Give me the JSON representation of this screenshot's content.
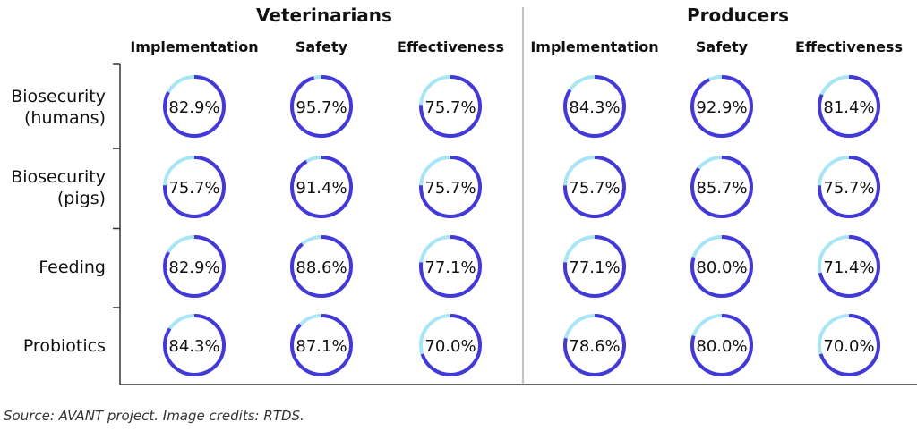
{
  "chart_data": {
    "type": "donut-grid",
    "groups": [
      "Veterinarians",
      "Producers"
    ],
    "metrics": [
      "Implementation",
      "Safety",
      "Effectiveness"
    ],
    "rows": [
      {
        "label": [
          "Biosecurity",
          "(humans)"
        ],
        "values": [
          [
            82.9,
            95.7,
            75.7
          ],
          [
            84.3,
            92.9,
            81.4
          ]
        ]
      },
      {
        "label": [
          "Biosecurity",
          "(pigs)"
        ],
        "values": [
          [
            75.7,
            91.4,
            75.7
          ],
          [
            75.7,
            85.7,
            75.7
          ]
        ]
      },
      {
        "label": [
          "Feeding"
        ],
        "values": [
          [
            82.9,
            88.6,
            77.1
          ],
          [
            77.1,
            80.0,
            71.4
          ]
        ]
      },
      {
        "label": [
          "Probiotics"
        ],
        "values": [
          [
            84.3,
            87.1,
            70.0
          ],
          [
            78.6,
            80.0,
            70.0
          ]
        ]
      }
    ],
    "colors": {
      "filled": "#4338d8",
      "remaining": "#a9e6f5",
      "axis": "#333333",
      "divider": "#999999"
    }
  },
  "source_text": "Source: AVANT project. Image credits: RTDS."
}
